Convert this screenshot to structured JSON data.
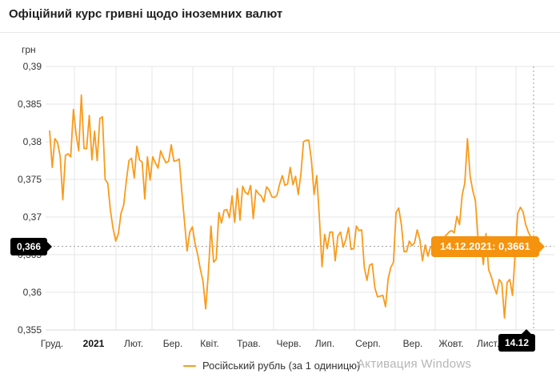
{
  "header": {
    "title": "Офіційний курс гривні щодо іноземних валют"
  },
  "chart": {
    "unit_label": "грн",
    "legend": {
      "label": "Російський рубль (за 1 одиницю)",
      "marker": "line-dash"
    },
    "tooltip": {
      "text": "14.12.2021: 0,3661"
    },
    "crosshair": {
      "y_label": "0,366",
      "x_label": "14.12"
    },
    "colors": {
      "line": "#f99b1c",
      "tooltip_bg": "#f5920e",
      "grid": "#e6e6e6",
      "axis_line": "#d9d9d9",
      "crosshair": "#9b9b9b",
      "crosshair_label_bg": "#000000",
      "text": "#333333"
    }
  },
  "watermark": {
    "line1": "Активация Windows"
  },
  "chart_data": {
    "type": "line",
    "title": "Офіційний курс гривні щодо іноземних валют",
    "ylabel": "грн",
    "series_name": "Російський рубль (за 1 одиницю)",
    "date_start": "14.12.2020",
    "date_end": "14.12.2021",
    "interval_days": 2,
    "ylim": [
      0.355,
      0.39
    ],
    "grid": true,
    "legend_position": "bottom",
    "y_ticks": [
      {
        "value": 0.39,
        "label": "0,39"
      },
      {
        "value": 0.385,
        "label": "0,385"
      },
      {
        "value": 0.38,
        "label": "0,38"
      },
      {
        "value": 0.375,
        "label": "0,375"
      },
      {
        "value": 0.37,
        "label": "0,37"
      },
      {
        "value": 0.365,
        "label": "0,365"
      },
      {
        "value": 0.36,
        "label": "0,36"
      },
      {
        "value": 0.355,
        "label": "0,355"
      }
    ],
    "x_tick_labels": [
      "Груд.",
      "2021",
      "Лют.",
      "Бер.",
      "Квіт.",
      "Трав.",
      "Черв.",
      "Лип.",
      "Серп.",
      "Вер.",
      "Жовт.",
      "Лист."
    ],
    "highlight_point": {
      "date": "14.12.2021",
      "value": 0.3661,
      "value_label": "0,3661"
    },
    "values": [
      0.3815,
      0.3766,
      0.3804,
      0.3799,
      0.3781,
      0.3723,
      0.3782,
      0.3784,
      0.378,
      0.3843,
      0.381,
      0.3788,
      0.3862,
      0.3791,
      0.3791,
      0.3835,
      0.3776,
      0.3814,
      0.3775,
      0.3831,
      0.3833,
      0.375,
      0.3745,
      0.3709,
      0.3685,
      0.3668,
      0.3678,
      0.3705,
      0.3716,
      0.3748,
      0.3775,
      0.3778,
      0.3752,
      0.3794,
      0.3776,
      0.3773,
      0.3724,
      0.378,
      0.3749,
      0.378,
      0.3772,
      0.3765,
      0.3788,
      0.3779,
      0.3772,
      0.3774,
      0.3796,
      0.3774,
      0.3775,
      0.3777,
      0.3733,
      0.3694,
      0.3655,
      0.368,
      0.3687,
      0.3665,
      0.365,
      0.3631,
      0.3615,
      0.3578,
      0.3625,
      0.3688,
      0.364,
      0.3644,
      0.3706,
      0.3692,
      0.3709,
      0.371,
      0.3699,
      0.3728,
      0.3693,
      0.3738,
      0.3696,
      0.3741,
      0.3733,
      0.373,
      0.3742,
      0.3698,
      0.3736,
      0.3731,
      0.3728,
      0.372,
      0.374,
      0.3736,
      0.3727,
      0.3726,
      0.3729,
      0.3744,
      0.3755,
      0.3742,
      0.3744,
      0.3766,
      0.3743,
      0.3754,
      0.373,
      0.3757,
      0.38,
      0.3802,
      0.3802,
      0.3775,
      0.373,
      0.3755,
      0.37,
      0.3634,
      0.3677,
      0.3658,
      0.368,
      0.368,
      0.3642,
      0.3675,
      0.368,
      0.366,
      0.367,
      0.3686,
      0.3657,
      0.3658,
      0.3688,
      0.3682,
      0.3683,
      0.3633,
      0.3616,
      0.3636,
      0.3638,
      0.3606,
      0.3594,
      0.3595,
      0.3596,
      0.3581,
      0.3618,
      0.3633,
      0.364,
      0.3706,
      0.3712,
      0.369,
      0.3654,
      0.3654,
      0.3668,
      0.3662,
      0.3666,
      0.3683,
      0.367,
      0.3642,
      0.3663,
      0.3648,
      0.366,
      0.3661,
      0.3663,
      0.3665,
      0.367,
      0.3673,
      0.3676,
      0.368,
      0.3682,
      0.3679,
      0.3701,
      0.369,
      0.3729,
      0.3745,
      0.3804,
      0.3754,
      0.3735,
      0.3721,
      0.3672,
      0.3664,
      0.3637,
      0.3678,
      0.363,
      0.3621,
      0.3608,
      0.3598,
      0.3617,
      0.3612,
      0.3566,
      0.3613,
      0.3617,
      0.3596,
      0.3651,
      0.3705,
      0.3713,
      0.3707,
      0.369,
      0.368,
      0.3673,
      0.3661
    ]
  }
}
